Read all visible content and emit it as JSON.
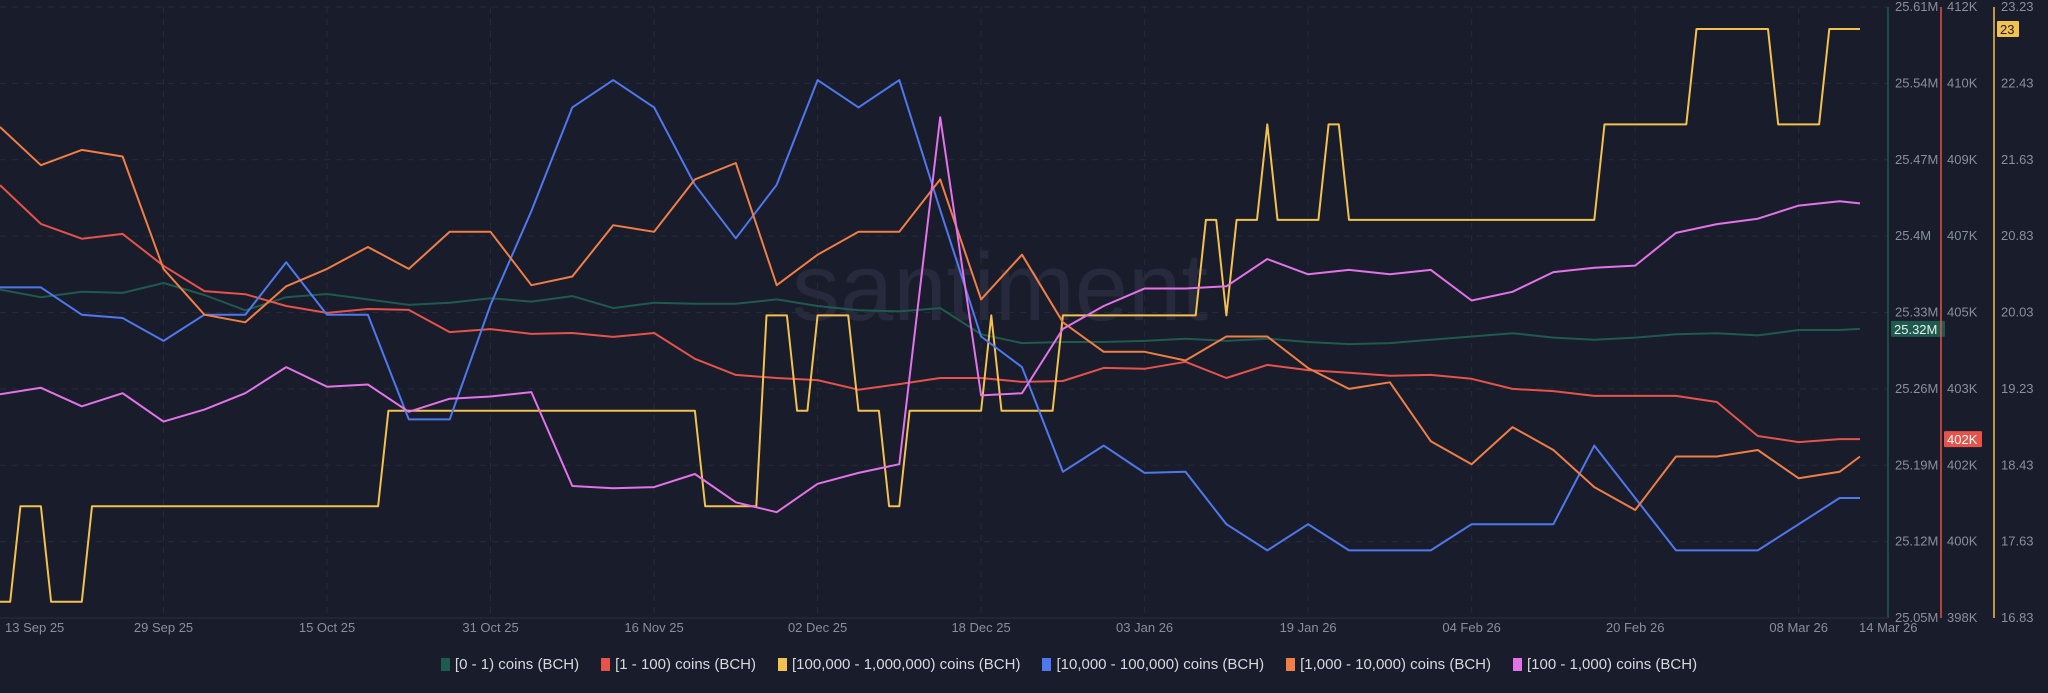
{
  "watermark": "santiment",
  "chart_data": {
    "type": "line",
    "x_domain": [
      "2025-09-13",
      "2026-03-14"
    ],
    "grid": true,
    "legend_position": "bottom",
    "x_ticks": [
      {
        "date": "2025-09-13",
        "label": "13 Sep 25"
      },
      {
        "date": "2025-09-29",
        "label": "29 Sep 25"
      },
      {
        "date": "2025-10-15",
        "label": "15 Oct 25"
      },
      {
        "date": "2025-10-31",
        "label": "31 Oct 25"
      },
      {
        "date": "2025-11-16",
        "label": "16 Nov 25"
      },
      {
        "date": "2025-12-02",
        "label": "02 Dec 25"
      },
      {
        "date": "2025-12-18",
        "label": "18 Dec 25"
      },
      {
        "date": "2026-01-03",
        "label": "03 Jan 26"
      },
      {
        "date": "2026-01-19",
        "label": "19 Jan 26"
      },
      {
        "date": "2026-02-04",
        "label": "04 Feb 26"
      },
      {
        "date": "2026-02-20",
        "label": "20 Feb 26"
      },
      {
        "date": "2026-03-08",
        "label": "08 Mar 26"
      },
      {
        "date": "2026-03-14",
        "label": "14 Mar 26"
      }
    ],
    "axes": [
      {
        "id": "g",
        "color": "#1f5a4e",
        "range": [
          25.05,
          25.61
        ],
        "tick_labels": [
          "25.61M",
          "25.54M",
          "25.47M",
          "25.4M",
          "25.33M",
          "25.26M",
          "25.19M",
          "25.12M",
          "25.05M"
        ],
        "badge": "25.32M",
        "badge_value": 25.315,
        "badge_bg": "#1f5a4e",
        "badge_fg": "#e8f2ef"
      },
      {
        "id": "r",
        "color": "#e5534b",
        "range": [
          398,
          412
        ],
        "tick_labels": [
          "412K",
          "410K",
          "409K",
          "407K",
          "405K",
          "403K",
          "402K",
          "400K",
          "398K"
        ],
        "badge": "402K",
        "badge_value": 402.1,
        "badge_bg": "#e5534b",
        "badge_fg": "#ffffff"
      },
      {
        "id": "y",
        "color": "#f2c14e",
        "range": [
          16.83,
          23.23
        ],
        "tick_labels": [
          "23.23",
          "22.43",
          "21.63",
          "20.83",
          "20.03",
          "19.23",
          "18.43",
          "17.63",
          "16.83"
        ],
        "badge": "23",
        "badge_value": 23,
        "badge_bg": "#f2c14e",
        "badge_fg": "#1b1d2a"
      }
    ],
    "x": [
      "2025-09-13",
      "2025-09-17",
      "2025-09-21",
      "2025-09-25",
      "2025-09-29",
      "2025-10-03",
      "2025-10-07",
      "2025-10-11",
      "2025-10-15",
      "2025-10-19",
      "2025-10-23",
      "2025-10-27",
      "2025-10-31",
      "2025-11-04",
      "2025-11-08",
      "2025-11-12",
      "2025-11-16",
      "2025-11-20",
      "2025-11-24",
      "2025-11-28",
      "2025-12-02",
      "2025-12-06",
      "2025-12-10",
      "2025-12-14",
      "2025-12-18",
      "2025-12-22",
      "2025-12-26",
      "2025-12-30",
      "2026-01-03",
      "2026-01-07",
      "2026-01-11",
      "2026-01-15",
      "2026-01-19",
      "2026-01-23",
      "2026-01-27",
      "2026-01-31",
      "2026-02-04",
      "2026-02-08",
      "2026-02-12",
      "2026-02-16",
      "2026-02-20",
      "2026-02-24",
      "2026-02-28",
      "2026-03-04",
      "2026-03-08",
      "2026-03-12",
      "2026-03-14"
    ],
    "series": [
      {
        "name": "[0 - 1) coins (BCH)",
        "color": "#1f5a4e",
        "axis": "g",
        "values": [
          25.351,
          25.344,
          25.349,
          25.348,
          25.357,
          25.346,
          25.332,
          25.344,
          25.347,
          25.342,
          25.337,
          25.339,
          25.343,
          25.34,
          25.345,
          25.334,
          25.339,
          25.338,
          25.338,
          25.342,
          25.336,
          25.332,
          25.331,
          25.334,
          25.31,
          25.302,
          25.303,
          25.303,
          25.304,
          25.306,
          25.304,
          25.306,
          25.303,
          25.301,
          25.302,
          25.305,
          25.308,
          25.311,
          25.307,
          25.305,
          25.307,
          25.31,
          25.311,
          25.309,
          25.314,
          25.314,
          25.315
        ]
      },
      {
        "name": "[1 - 100) coins (BCH)",
        "color": "#e5534b",
        "axis": "r",
        "values": [
          407.92,
          407.03,
          406.69,
          406.8,
          406.07,
          405.49,
          405.42,
          405.15,
          404.99,
          405.08,
          405.06,
          404.55,
          404.62,
          404.51,
          404.53,
          404.44,
          404.53,
          403.94,
          403.57,
          403.5,
          403.45,
          403.23,
          403.36,
          403.5,
          403.5,
          403.41,
          403.43,
          403.73,
          403.71,
          403.87,
          403.5,
          403.8,
          403.68,
          403.62,
          403.55,
          403.57,
          403.48,
          403.25,
          403.2,
          403.09,
          403.09,
          403.09,
          402.95,
          402.17,
          402.03,
          402.1,
          402.1
        ]
      },
      {
        "name": "[100,000  - 1,000,000) coins (BCH)",
        "color": "#f2c14e",
        "axis": "y",
        "x": [
          "2025-09-13",
          "2025-09-14",
          "2025-09-15",
          "2025-09-17",
          "2025-09-18",
          "2025-09-21",
          "2025-09-22",
          "2025-10-20",
          "2025-10-21",
          "2025-11-20",
          "2025-11-21",
          "2025-11-26",
          "2025-11-27",
          "2025-11-29",
          "2025-11-30",
          "2025-12-01",
          "2025-12-02",
          "2025-12-05",
          "2025-12-06",
          "2025-12-08",
          "2025-12-09",
          "2025-12-10",
          "2025-12-11",
          "2025-12-18",
          "2025-12-19",
          "2025-12-20",
          "2025-12-25",
          "2025-12-26",
          "2026-01-08",
          "2026-01-09",
          "2026-01-10",
          "2026-01-11",
          "2026-01-12",
          "2026-01-14",
          "2026-01-15",
          "2026-01-16",
          "2026-01-20",
          "2026-01-21",
          "2026-01-22",
          "2026-01-23",
          "2026-02-16",
          "2026-02-17",
          "2026-02-25",
          "2026-02-26",
          "2026-03-05",
          "2026-03-06",
          "2026-03-10",
          "2026-03-11",
          "2026-03-14"
        ],
        "values": [
          17,
          17,
          18,
          18,
          17,
          17,
          18,
          18,
          19,
          19,
          18,
          18,
          20,
          20,
          19,
          19,
          20,
          20,
          19,
          19,
          18,
          18,
          19,
          19,
          20,
          19,
          19,
          20,
          20,
          21,
          21,
          20,
          21,
          21,
          22,
          21,
          21,
          22,
          22,
          21,
          21,
          22,
          22,
          23,
          23,
          22,
          22,
          23,
          23
        ]
      },
      {
        "name": "[10,000 - 100,000) coins (BCH)",
        "color": "#4f78ee",
        "axis": "g",
        "values": [
          25.353,
          25.353,
          25.328,
          25.325,
          25.304,
          25.328,
          25.328,
          25.376,
          25.328,
          25.328,
          25.232,
          25.232,
          25.337,
          25.423,
          25.518,
          25.543,
          25.518,
          25.447,
          25.398,
          25.447,
          25.543,
          25.518,
          25.543,
          25.424,
          25.308,
          25.28,
          25.184,
          25.208,
          25.183,
          25.184,
          25.136,
          25.112,
          25.136,
          25.112,
          25.112,
          25.112,
          25.136,
          25.136,
          25.136,
          25.208,
          25.16,
          25.112,
          25.112,
          25.112,
          25.136,
          25.16,
          25.16
        ]
      },
      {
        "name": "[1,000 - 10,000) coins (BCH)",
        "color": "#f07e45",
        "axis": "g",
        "values": [
          25.5,
          25.465,
          25.479,
          25.473,
          25.37,
          25.328,
          25.321,
          25.354,
          25.37,
          25.39,
          25.37,
          25.404,
          25.404,
          25.355,
          25.363,
          25.41,
          25.404,
          25.452,
          25.467,
          25.355,
          25.383,
          25.404,
          25.404,
          25.452,
          25.342,
          25.383,
          25.321,
          25.294,
          25.294,
          25.286,
          25.308,
          25.308,
          25.279,
          25.26,
          25.266,
          25.212,
          25.191,
          25.225,
          25.204,
          25.17,
          25.149,
          25.198,
          25.198,
          25.204,
          25.178,
          25.184,
          25.198
        ]
      },
      {
        "name": "[100 - 1,000) coins (BCH)",
        "color": "#e373e8",
        "axis": "g",
        "values": [
          25.255,
          25.261,
          25.244,
          25.256,
          25.23,
          25.241,
          25.256,
          25.28,
          25.262,
          25.264,
          25.239,
          25.251,
          25.253,
          25.257,
          25.171,
          25.169,
          25.17,
          25.182,
          25.156,
          25.147,
          25.173,
          25.183,
          25.191,
          25.509,
          25.254,
          25.256,
          25.315,
          25.336,
          25.352,
          25.352,
          25.354,
          25.379,
          25.365,
          25.369,
          25.365,
          25.369,
          25.341,
          25.349,
          25.367,
          25.371,
          25.373,
          25.403,
          25.411,
          25.416,
          25.428,
          25.432,
          25.43
        ]
      }
    ]
  }
}
